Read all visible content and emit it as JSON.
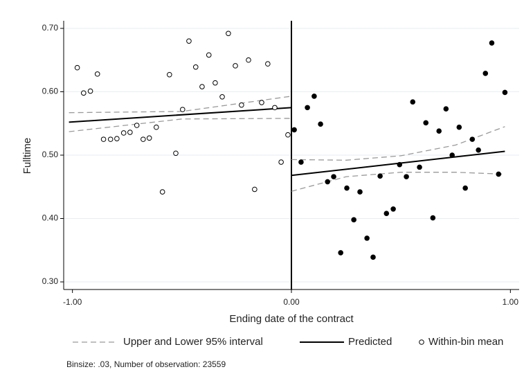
{
  "chart_data": {
    "type": "scatter",
    "x_label": "Ending date of the contract",
    "y_label": "Fulltime",
    "note": "Binsize: .03, Number of observation: 23559",
    "xlim": [
      -1.04,
      1.04
    ],
    "ylim": [
      0.288,
      0.712
    ],
    "xticks": [
      {
        "value": -1,
        "label": "-1.00"
      },
      {
        "value": 0,
        "label": "0.00"
      },
      {
        "value": 1,
        "label": "1.00"
      }
    ],
    "yticks": [
      {
        "value": 0.3,
        "label": "0.30"
      },
      {
        "value": 0.4,
        "label": "0.40"
      },
      {
        "value": 0.5,
        "label": "0.50"
      },
      {
        "value": 0.6,
        "label": "0.60"
      },
      {
        "value": 0.7,
        "label": "0.70"
      }
    ],
    "grid": true,
    "vline": 0,
    "legend": "bottom",
    "series": [
      {
        "name": "Upper and Lower 95% interval",
        "kind": "line",
        "dash": true,
        "color": "#999999",
        "x": [
          -1.016,
          -0.5,
          0,
          null,
          0,
          0.25,
          0.5,
          0.75,
          0.975,
          null,
          -1.016,
          -0.5,
          0,
          null,
          0,
          0.25,
          0.5,
          0.75,
          0.975
        ],
        "values": [
          0.567,
          0.569,
          0.593,
          null,
          0.493,
          0.492,
          0.499,
          0.516,
          0.545,
          null,
          0.537,
          0.557,
          0.558,
          null,
          0.443,
          0.466,
          0.473,
          0.473,
          0.47
        ]
      },
      {
        "name": "Predicted",
        "kind": "line",
        "dash": false,
        "color": "#000000",
        "x": [
          -1.016,
          0,
          null,
          0,
          0.975
        ],
        "values": [
          0.552,
          0.575,
          null,
          0.468,
          0.506
        ]
      },
      {
        "name": "Within-bin mean",
        "kind": "point",
        "fill": "#ffffff",
        "color": "#000000",
        "x": [
          -0.978,
          -0.949,
          -0.918,
          -0.886,
          -0.858,
          -0.826,
          -0.797,
          -0.766,
          -0.737,
          -0.706,
          -0.677,
          -0.649,
          -0.617,
          -0.589,
          -0.557,
          -0.528,
          -0.497,
          -0.468,
          -0.437,
          -0.408,
          -0.377,
          -0.348,
          -0.316,
          -0.288,
          -0.256,
          -0.228,
          -0.196,
          -0.168,
          -0.136,
          -0.108,
          -0.076,
          -0.047,
          -0.016
        ],
        "values": [
          0.638,
          0.598,
          0.601,
          0.628,
          0.525,
          0.525,
          0.526,
          0.535,
          0.536,
          0.547,
          0.525,
          0.527,
          0.544,
          0.442,
          0.627,
          0.503,
          0.572,
          0.68,
          0.639,
          0.608,
          0.658,
          0.614,
          0.592,
          0.692,
          0.641,
          0.579,
          0.65,
          0.446,
          0.583,
          0.644,
          0.575,
          0.489,
          0.532
        ]
      },
      {
        "kind": "point",
        "fill": "#000000",
        "color": "#000000",
        "x": [
          0.013,
          0.044,
          0.073,
          0.104,
          0.133,
          0.165,
          0.193,
          0.225,
          0.253,
          0.285,
          0.313,
          0.345,
          0.373,
          0.405,
          0.434,
          0.465,
          0.494,
          0.525,
          0.554,
          0.585,
          0.614,
          0.646,
          0.674,
          0.706,
          0.734,
          0.766,
          0.794,
          0.826,
          0.854,
          0.886,
          0.915,
          0.946,
          0.975
        ],
        "values": [
          0.54,
          0.489,
          0.575,
          0.593,
          0.549,
          0.458,
          0.466,
          0.346,
          0.448,
          0.398,
          0.442,
          0.369,
          0.339,
          0.467,
          0.408,
          0.415,
          0.485,
          0.466,
          0.584,
          0.481,
          0.551,
          0.401,
          0.538,
          0.573,
          0.5,
          0.544,
          0.448,
          0.525,
          0.508,
          0.629,
          0.677,
          0.47,
          0.599
        ]
      }
    ]
  }
}
